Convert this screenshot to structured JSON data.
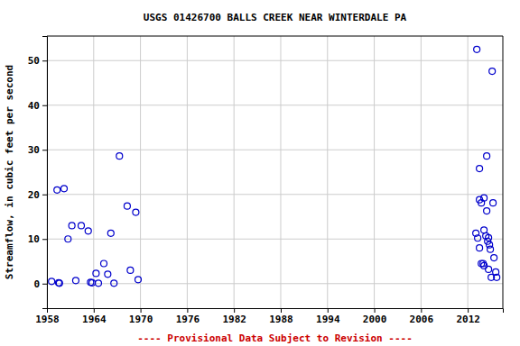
{
  "chart_data": {
    "type": "scatter",
    "title": "USGS 01426700 BALLS CREEK NEAR WINTERDALE PA",
    "y_label": "Streamflow, in cubic feet per second",
    "annotation": "---- Provisional Data Subject to Revision ----",
    "x": [
      1958.6,
      1959.3,
      1959.5,
      1959.6,
      1960.2,
      1960.7,
      1961.2,
      1961.7,
      1962.4,
      1963.3,
      1963.6,
      1963.8,
      1964.3,
      1964.6,
      1965.3,
      1965.8,
      1966.2,
      1966.6,
      1967.3,
      1968.3,
      1968.7,
      1969.4,
      1969.7,
      2013.16,
      2013.04,
      2013.27,
      2013.5,
      2013.5,
      2013.74,
      2013.5,
      2013.74,
      2013.97,
      2014.08,
      2014.08,
      2014.08,
      2014.32,
      2014.43,
      2014.43,
      2014.55,
      2014.66,
      2014.78,
      2014.66,
      2014.89,
      2015.01,
      2015.13,
      2015.24,
      2015.36,
      2015.59,
      2015.71
    ],
    "values": [
      0.5,
      21,
      0.2,
      0.1,
      21.3,
      10,
      13,
      0.7,
      13,
      11.8,
      0.3,
      0.2,
      2.3,
      0.1,
      4.5,
      2.1,
      11.3,
      0.1,
      28.6,
      17.4,
      3,
      16,
      0.9,
      52.5,
      11.3,
      10.2,
      25.8,
      18.8,
      18.1,
      8,
      4.5,
      4.5,
      4,
      19.2,
      12,
      10.7,
      28.6,
      16.3,
      9.5,
      10.3,
      8.7,
      3.2,
      7.7,
      1.4,
      47.6,
      18.1,
      5.8,
      2.6,
      1.4
    ],
    "color": "#0000cc",
    "marker": "circle-open",
    "xlim": [
      1958,
      2016.5
    ],
    "xticks": [
      1958,
      1964,
      1970,
      1976,
      1982,
      1988,
      1994,
      2000,
      2006,
      2012
    ],
    "ylim": [
      -5.5,
      55.5
    ],
    "yticks": [
      0,
      10,
      20,
      30,
      40,
      50
    ],
    "grid": true
  }
}
